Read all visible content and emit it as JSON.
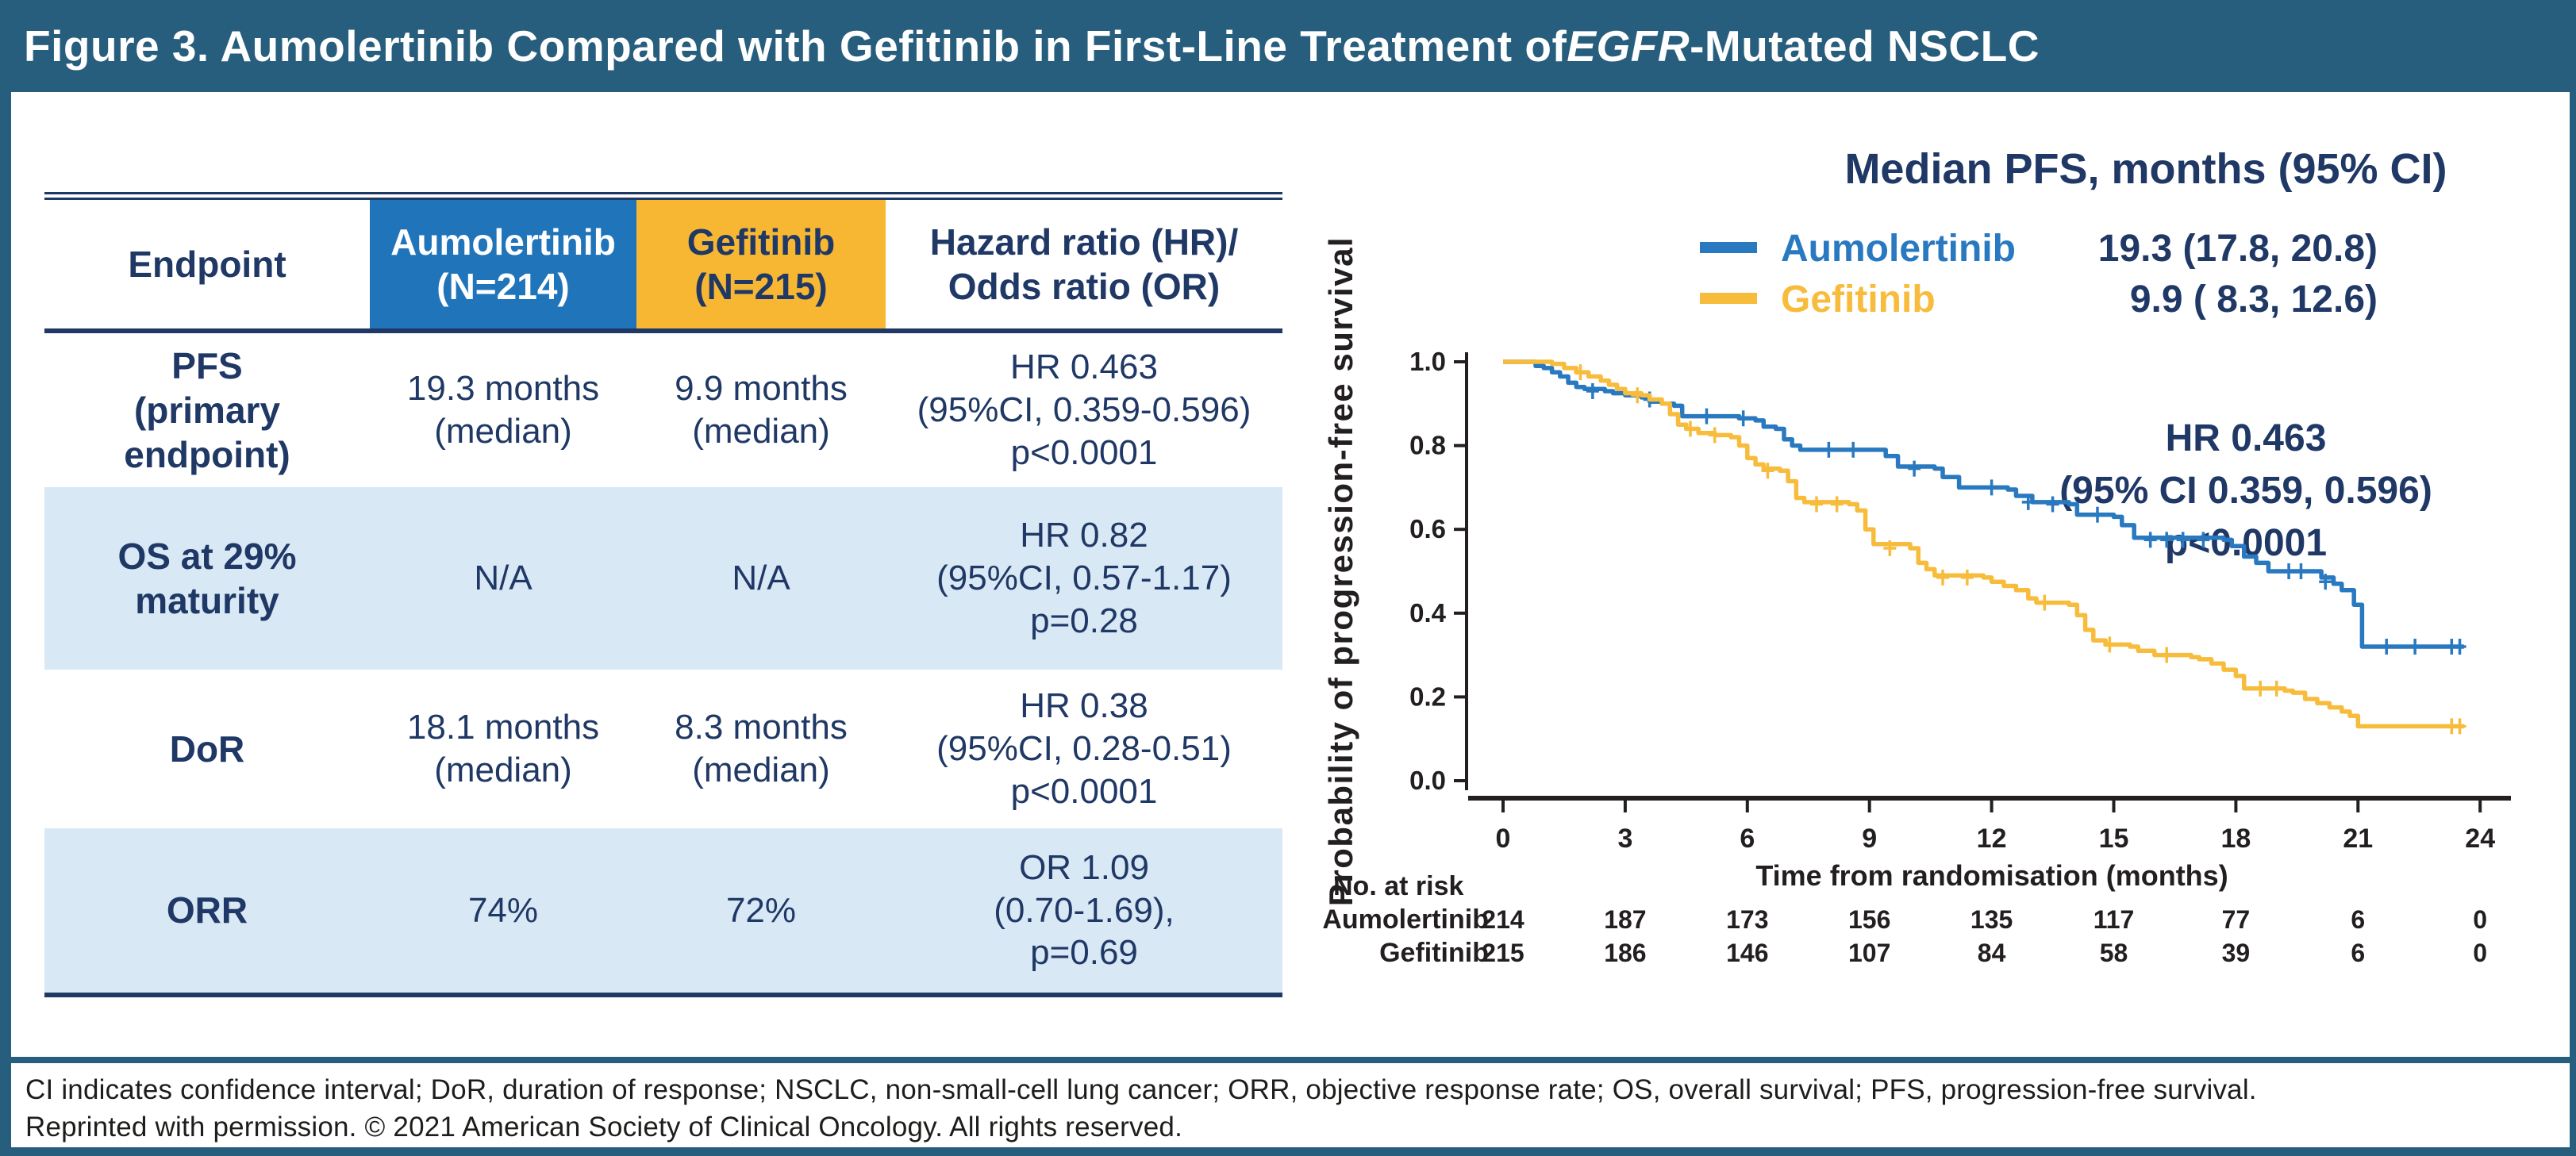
{
  "figure": {
    "title_prefix": "Figure 3. Aumolertinib Compared with Gefitinib in First-Line Treatment of ",
    "title_italic": "EGFR",
    "title_suffix": "-Mutated NSCLC"
  },
  "colors": {
    "teal": "#285E7D",
    "navy": "#1F3865",
    "header_blue": "#2074BA",
    "header_yellow": "#F7B733",
    "shaded_row": "#D9E8F5",
    "curve_blue": "#2979C0",
    "curve_yellow": "#F8BC3C",
    "axis_black": "#231F20"
  },
  "table": {
    "header": {
      "endpoint": "Endpoint",
      "arm1": "Aumolertinib\n(N=214)",
      "arm2": "Gefitinib\n(N=215)",
      "ratio": "Hazard ratio (HR)/\nOdds ratio (OR)"
    },
    "rows": [
      {
        "endpoint": "PFS\n(primary\nendpoint)",
        "arm1": "19.3 months\n(median)",
        "arm2": "9.9 months\n(median)",
        "ratio": "HR 0.463\n(95%CI, 0.359-0.596)\np<0.0001"
      },
      {
        "endpoint": "OS at 29%\nmaturity",
        "arm1": "N/A",
        "arm2": "N/A",
        "ratio": "HR 0.82\n(95%CI, 0.57-1.17)\np=0.28"
      },
      {
        "endpoint": "DoR",
        "arm1": "18.1 months\n(median)",
        "arm2": "8.3 months\n(median)",
        "ratio": "HR 0.38\n(95%CI, 0.28-0.51)\np<0.0001"
      },
      {
        "endpoint": "ORR",
        "arm1": "74%",
        "arm2": "72%",
        "ratio": "OR 1.09\n(0.70-1.69),\np=0.69"
      }
    ]
  },
  "chart_data": {
    "type": "line",
    "subtype": "kaplan-meier-step",
    "title": "Median PFS, months (95% CI)",
    "xlabel": "Time from randomisation (months)",
    "ylabel": "Probability of progression-free survival",
    "xlim": [
      0,
      24
    ],
    "ylim": [
      0.0,
      1.0
    ],
    "xticks": [
      0,
      3,
      6,
      9,
      12,
      15,
      18,
      21,
      24
    ],
    "yticks": [
      0.0,
      0.2,
      0.4,
      0.6,
      0.8,
      1.0
    ],
    "grid": false,
    "legend_position": "top",
    "annotation": [
      "HR 0.463",
      "(95% CI 0.359, 0.596)",
      "p<0.0001"
    ],
    "series": [
      {
        "name": "Aumolertinib",
        "median_label": "19.3 (17.8, 20.8)",
        "color": "#2979C0",
        "steps": [
          [
            0,
            1.0
          ],
          [
            0.7,
            1.0
          ],
          [
            0.8,
            0.99
          ],
          [
            1.0,
            0.985
          ],
          [
            1.2,
            0.975
          ],
          [
            1.4,
            0.965
          ],
          [
            1.6,
            0.95
          ],
          [
            1.8,
            0.94
          ],
          [
            2.0,
            0.935
          ],
          [
            2.5,
            0.93
          ],
          [
            2.7,
            0.925
          ],
          [
            3.0,
            0.92
          ],
          [
            3.4,
            0.915
          ],
          [
            3.6,
            0.905
          ],
          [
            3.9,
            0.9
          ],
          [
            4.2,
            0.895
          ],
          [
            4.4,
            0.87
          ],
          [
            5.6,
            0.87
          ],
          [
            5.8,
            0.865
          ],
          [
            6.2,
            0.86
          ],
          [
            6.4,
            0.845
          ],
          [
            6.7,
            0.84
          ],
          [
            6.9,
            0.815
          ],
          [
            7.1,
            0.8
          ],
          [
            7.3,
            0.79
          ],
          [
            9.2,
            0.79
          ],
          [
            9.4,
            0.775
          ],
          [
            9.7,
            0.75
          ],
          [
            10.6,
            0.745
          ],
          [
            10.8,
            0.725
          ],
          [
            11.2,
            0.7
          ],
          [
            12.4,
            0.695
          ],
          [
            12.6,
            0.68
          ],
          [
            13.0,
            0.665
          ],
          [
            13.9,
            0.66
          ],
          [
            14.1,
            0.635
          ],
          [
            15.0,
            0.63
          ],
          [
            15.2,
            0.61
          ],
          [
            15.5,
            0.58
          ],
          [
            17.7,
            0.575
          ],
          [
            17.9,
            0.56
          ],
          [
            18.2,
            0.535
          ],
          [
            18.5,
            0.52
          ],
          [
            18.8,
            0.5
          ],
          [
            19.9,
            0.5
          ],
          [
            20.1,
            0.485
          ],
          [
            20.4,
            0.47
          ],
          [
            20.6,
            0.455
          ],
          [
            20.9,
            0.42
          ],
          [
            21.1,
            0.32
          ],
          [
            23.6,
            0.32
          ]
        ],
        "censors": [
          [
            2.2,
            0.93
          ],
          [
            3.6,
            0.91
          ],
          [
            5.0,
            0.87
          ],
          [
            5.9,
            0.865
          ],
          [
            8.0,
            0.79
          ],
          [
            8.6,
            0.79
          ],
          [
            10.1,
            0.745
          ],
          [
            12.0,
            0.7
          ],
          [
            12.9,
            0.665
          ],
          [
            13.5,
            0.66
          ],
          [
            14.6,
            0.635
          ],
          [
            15.9,
            0.575
          ],
          [
            16.3,
            0.575
          ],
          [
            16.7,
            0.575
          ],
          [
            17.2,
            0.575
          ],
          [
            19.3,
            0.5
          ],
          [
            19.6,
            0.5
          ],
          [
            20.2,
            0.475
          ],
          [
            21.7,
            0.32
          ],
          [
            22.4,
            0.32
          ],
          [
            23.3,
            0.32
          ],
          [
            23.5,
            0.32
          ]
        ]
      },
      {
        "name": "Gefitinib",
        "median_label": "9.9 ( 8.3, 12.6)",
        "color": "#F8BC3C",
        "steps": [
          [
            0,
            1.0
          ],
          [
            1.0,
            1.0
          ],
          [
            1.2,
            0.995
          ],
          [
            1.5,
            0.985
          ],
          [
            1.8,
            0.975
          ],
          [
            2.1,
            0.965
          ],
          [
            2.4,
            0.955
          ],
          [
            2.6,
            0.945
          ],
          [
            2.8,
            0.935
          ],
          [
            3.0,
            0.925
          ],
          [
            3.4,
            0.92
          ],
          [
            3.6,
            0.91
          ],
          [
            3.9,
            0.9
          ],
          [
            4.1,
            0.875
          ],
          [
            4.3,
            0.85
          ],
          [
            4.5,
            0.84
          ],
          [
            4.8,
            0.83
          ],
          [
            5.2,
            0.825
          ],
          [
            5.6,
            0.82
          ],
          [
            5.8,
            0.8
          ],
          [
            6.0,
            0.77
          ],
          [
            6.2,
            0.755
          ],
          [
            6.4,
            0.745
          ],
          [
            6.8,
            0.74
          ],
          [
            7.0,
            0.715
          ],
          [
            7.2,
            0.675
          ],
          [
            7.4,
            0.665
          ],
          [
            8.5,
            0.66
          ],
          [
            8.7,
            0.645
          ],
          [
            8.9,
            0.6
          ],
          [
            9.1,
            0.565
          ],
          [
            10.0,
            0.555
          ],
          [
            10.2,
            0.52
          ],
          [
            10.4,
            0.505
          ],
          [
            10.6,
            0.49
          ],
          [
            11.8,
            0.485
          ],
          [
            12.0,
            0.475
          ],
          [
            12.3,
            0.465
          ],
          [
            12.6,
            0.455
          ],
          [
            12.9,
            0.435
          ],
          [
            13.1,
            0.425
          ],
          [
            13.9,
            0.42
          ],
          [
            14.1,
            0.395
          ],
          [
            14.3,
            0.36
          ],
          [
            14.5,
            0.335
          ],
          [
            14.8,
            0.325
          ],
          [
            15.4,
            0.32
          ],
          [
            15.6,
            0.31
          ],
          [
            16.0,
            0.3
          ],
          [
            16.9,
            0.295
          ],
          [
            17.1,
            0.29
          ],
          [
            17.4,
            0.28
          ],
          [
            17.7,
            0.265
          ],
          [
            18.0,
            0.25
          ],
          [
            18.2,
            0.22
          ],
          [
            19.2,
            0.215
          ],
          [
            19.4,
            0.21
          ],
          [
            19.7,
            0.195
          ],
          [
            20.0,
            0.185
          ],
          [
            20.3,
            0.175
          ],
          [
            20.6,
            0.165
          ],
          [
            20.8,
            0.155
          ],
          [
            21.0,
            0.13
          ],
          [
            23.6,
            0.13
          ]
        ],
        "censors": [
          [
            1.9,
            0.975
          ],
          [
            3.3,
            0.92
          ],
          [
            4.6,
            0.84
          ],
          [
            5.2,
            0.825
          ],
          [
            6.5,
            0.74
          ],
          [
            7.7,
            0.66
          ],
          [
            8.2,
            0.66
          ],
          [
            9.5,
            0.555
          ],
          [
            10.8,
            0.485
          ],
          [
            11.4,
            0.485
          ],
          [
            13.3,
            0.425
          ],
          [
            14.9,
            0.325
          ],
          [
            16.3,
            0.3
          ],
          [
            18.6,
            0.22
          ],
          [
            19.0,
            0.22
          ],
          [
            23.3,
            0.13
          ],
          [
            23.5,
            0.13
          ]
        ]
      }
    ],
    "risk_table": {
      "label": "No. at risk",
      "time": [
        0,
        3,
        6,
        9,
        12,
        15,
        18,
        21,
        24
      ],
      "rows": [
        {
          "name": "Aumolertinib",
          "counts": [
            214,
            187,
            173,
            156,
            135,
            117,
            77,
            6,
            0
          ]
        },
        {
          "name": "Gefitinib",
          "counts": [
            215,
            186,
            146,
            107,
            84,
            58,
            39,
            6,
            0
          ]
        }
      ]
    }
  },
  "footnote": {
    "line1": "CI indicates confidence interval; DoR, duration of response; NSCLC, non-small-cell lung cancer; ORR, objective response rate; OS, overall survival; PFS, progression-free survival.",
    "line2": "Reprinted with permission. © 2021 American Society of Clinical Oncology. All rights reserved."
  }
}
